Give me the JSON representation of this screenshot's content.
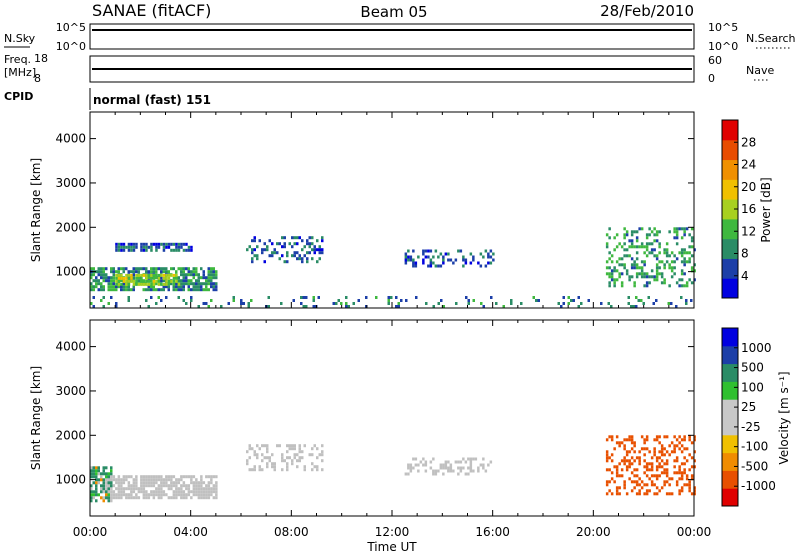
{
  "header": {
    "station": "SANAE (fitACF)",
    "beam": "Beam 05",
    "date": "28/Feb/2010"
  },
  "panels": {
    "nsky_label": "N.Sky",
    "nsky_ticks": [
      "10^5",
      "10^0"
    ],
    "nsearch_label": "N.Search",
    "nsearch_ticks": [
      "10^5",
      "10^0"
    ],
    "freq_label": "Freq.",
    "freq_unit": "[MHz]",
    "freq_ticks": [
      "18",
      "8"
    ],
    "nave_label": "Nave",
    "nave_ticks": [
      "60",
      "0"
    ],
    "cpid_label": "CPID",
    "cpid_value": "normal (fast) 151"
  },
  "colors": {
    "power": [
      "#0000e0",
      "#1c3fa8",
      "#2a8c66",
      "#3fb83f",
      "#a8d020",
      "#f0c000",
      "#f09000",
      "#e84c00",
      "#e00000"
    ],
    "velocity": [
      "#e00000",
      "#e85000",
      "#f08c00",
      "#f0c000",
      "#c8c8c8",
      "#c8c8c8",
      "#30c030",
      "#2a8c66",
      "#1c3fa8",
      "#0000e0"
    ],
    "ground_scatter": "#c0c0c0"
  },
  "chart_data": [
    {
      "type": "heatmap",
      "title": "",
      "xlabel": "",
      "ylabel": "Slant Range [km]",
      "x_ticks": [
        "00:00",
        "04:00",
        "08:00",
        "12:00",
        "16:00",
        "20:00",
        "00:00"
      ],
      "y_ticks": [
        "1000",
        "2000",
        "3000",
        "4000"
      ],
      "colorbar_label": "Power [dB]",
      "colorbar_ticks": [
        "4",
        "8",
        "12",
        "16",
        "20",
        "24",
        "28"
      ],
      "xlim_hours": [
        0,
        24
      ],
      "ylim_km": [
        180,
        4600
      ],
      "features": [
        {
          "name": "morning near-range echo",
          "t": [
            0.0,
            5.0
          ],
          "r": [
            600,
            1100
          ],
          "power_db": 9
        },
        {
          "name": "morning near-range core",
          "t": [
            1.0,
            3.5
          ],
          "r": [
            700,
            950
          ],
          "power_db": 15
        },
        {
          "name": "morning upper patch",
          "t": [
            1.0,
            4.0
          ],
          "r": [
            1450,
            1650
          ],
          "power_db": 6
        },
        {
          "name": "daytime band 1",
          "t": [
            6.2,
            9.2
          ],
          "r": [
            1200,
            1800
          ],
          "power_db": 6
        },
        {
          "name": "daytime band 2",
          "t": [
            12.5,
            16.0
          ],
          "r": [
            1150,
            1500
          ],
          "power_db": 6
        },
        {
          "name": "evening echo",
          "t": [
            20.5,
            24.0
          ],
          "r": [
            700,
            2000
          ],
          "power_db": 10
        },
        {
          "name": "near-range clutter",
          "t": [
            0.0,
            24.0
          ],
          "r": [
            200,
            450
          ],
          "power_db": 8
        }
      ]
    },
    {
      "type": "heatmap",
      "title": "",
      "xlabel": "Time UT",
      "ylabel": "Slant Range [km]",
      "x_ticks": [
        "00:00",
        "04:00",
        "08:00",
        "12:00",
        "16:00",
        "20:00",
        "00:00"
      ],
      "y_ticks": [
        "1000",
        "2000",
        "3000",
        "4000"
      ],
      "colorbar_label": "Velocity [m s⁻¹]",
      "colorbar_ticks": [
        "1000",
        "500",
        "100",
        "25",
        "-25",
        "-100",
        "-500",
        "-1000"
      ],
      "xlim_hours": [
        0,
        24
      ],
      "ylim_km": [
        180,
        4600
      ],
      "features": [
        {
          "name": "morning ground scatter",
          "t": [
            0.6,
            5.0
          ],
          "r": [
            600,
            1100
          ],
          "velocity": 0
        },
        {
          "name": "morning positive flow",
          "t": [
            0.0,
            0.8
          ],
          "r": [
            500,
            1300
          ],
          "velocity": 150
        },
        {
          "name": "daytime ground scatter 1",
          "t": [
            6.2,
            9.2
          ],
          "r": [
            1200,
            1800
          ],
          "velocity": 0
        },
        {
          "name": "daytime ground scatter 2",
          "t": [
            12.5,
            16.0
          ],
          "r": [
            1150,
            1500
          ],
          "velocity": 0
        },
        {
          "name": "evening negative flow",
          "t": [
            20.5,
            24.0
          ],
          "r": [
            700,
            2000
          ],
          "velocity": -300
        }
      ]
    }
  ]
}
